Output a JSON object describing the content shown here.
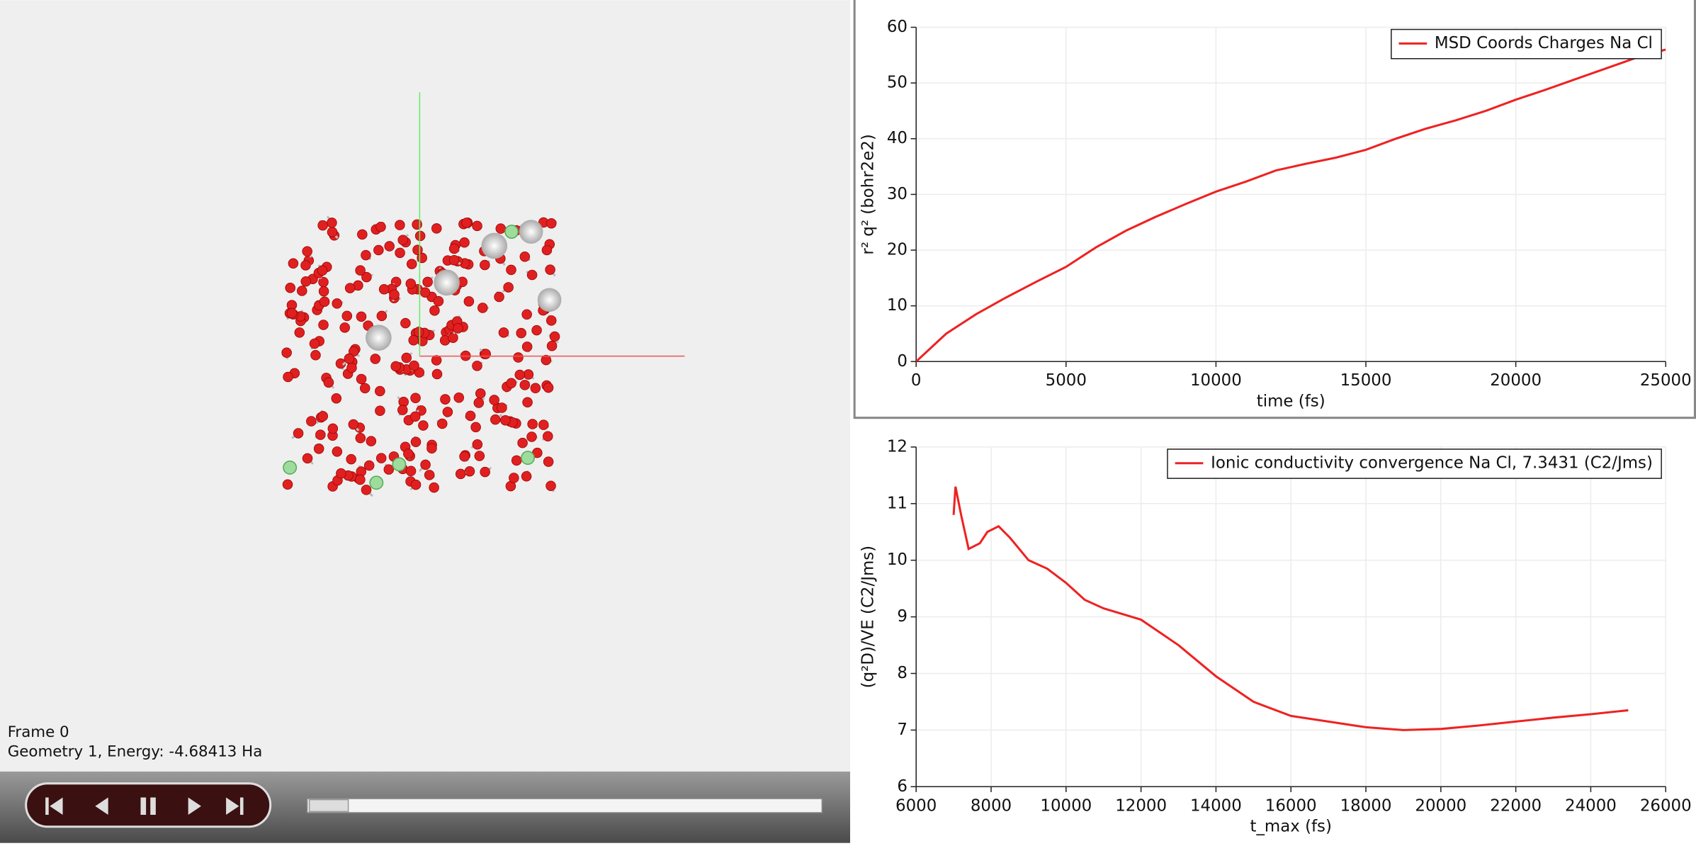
{
  "viewer": {
    "frame": "Frame 0",
    "geometry": "Geometry 1, Energy: -4.68413 Ha"
  },
  "chart_data": [
    {
      "type": "line",
      "xlabel": "time (fs)",
      "ylabel": "r² q² (bohr2e2)",
      "x": [
        0,
        1000,
        2000,
        3000,
        4000,
        5000,
        6000,
        7000,
        8000,
        9000,
        10000,
        11000,
        12000,
        13000,
        14000,
        15000,
        16000,
        17000,
        18000,
        19000,
        20000,
        21000,
        22000,
        23000,
        24000,
        25000
      ],
      "series": [
        {
          "name": "MSD Coords Charges Na Cl",
          "color": "#ee2222",
          "values": [
            0,
            5,
            8.5,
            11.5,
            14.3,
            17,
            20.5,
            23.5,
            26,
            28.3,
            30.5,
            32.3,
            34.3,
            35.5,
            36.6,
            38,
            40,
            41.8,
            43.3,
            45,
            47,
            48.8,
            50.7,
            52.6,
            54.5,
            56
          ]
        }
      ],
      "xlim": [
        0,
        25000
      ],
      "ylim": [
        0,
        60
      ],
      "xticks": [
        0,
        5000,
        10000,
        15000,
        20000,
        25000
      ],
      "yticks": [
        0,
        10,
        20,
        30,
        40,
        50,
        60
      ],
      "grid": true,
      "legend": "top-right"
    },
    {
      "type": "line",
      "xlabel": "t_max (fs)",
      "ylabel": "(q²D)/VE (C2/Jms)",
      "x": [
        7000,
        7050,
        7200,
        7400,
        7700,
        7900,
        8200,
        8500,
        9000,
        9500,
        10000,
        10500,
        11000,
        12000,
        13000,
        14000,
        15000,
        16000,
        17000,
        18000,
        19000,
        20000,
        21000,
        22000,
        23000,
        24000,
        25000
      ],
      "series": [
        {
          "name": "Ionic conductivity convergence Na Cl, 7.3431 (C2/Jms)",
          "color": "#ee2222",
          "values": [
            10.8,
            11.3,
            10.8,
            10.2,
            10.3,
            10.5,
            10.6,
            10.4,
            10,
            9.85,
            9.6,
            9.3,
            9.15,
            8.95,
            8.5,
            7.95,
            7.5,
            7.25,
            7.15,
            7.05,
            7,
            7.02,
            7.08,
            7.15,
            7.22,
            7.28,
            7.35
          ]
        }
      ],
      "xlim": [
        6000,
        26000
      ],
      "ylim": [
        6,
        12
      ],
      "xticks": [
        6000,
        8000,
        10000,
        12000,
        14000,
        16000,
        18000,
        20000,
        22000,
        24000,
        26000
      ],
      "yticks": [
        6,
        7,
        8,
        9,
        10,
        11,
        12
      ],
      "grid": true,
      "legend": "top-right"
    }
  ]
}
